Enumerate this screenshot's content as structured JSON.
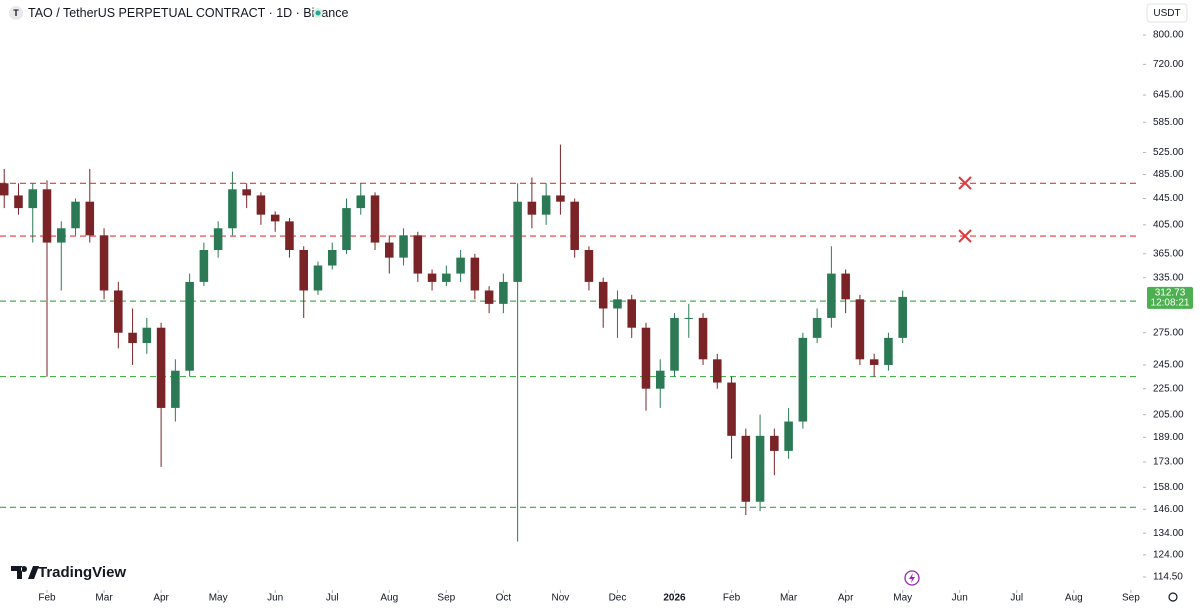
{
  "chart_data": {
    "type": "candlestick",
    "title": "TAO / TetherUS PERPETUAL CONTRACT · 1D · Binance",
    "symbol_icon": "T",
    "currency": "USDT",
    "brand": "TradingView",
    "countdown": "12:08:21",
    "log_scale": true,
    "grid": false,
    "up_color": "#2b7a55",
    "down_color": "#7a2428",
    "last_price_color": "#4caf50",
    "ylim": [
      109.3,
      907
    ],
    "yticks": [
      {
        "value": 800,
        "label": "800.00"
      },
      {
        "value": 720,
        "label": "720.00"
      },
      {
        "value": 645,
        "label": "645.00"
      },
      {
        "value": 585,
        "label": "585.00"
      },
      {
        "value": 525,
        "label": "525.00"
      },
      {
        "value": 485,
        "label": "485.00"
      },
      {
        "value": 445,
        "label": "445.00"
      },
      {
        "value": 405,
        "label": "405.00"
      },
      {
        "value": 365,
        "label": "365.00"
      },
      {
        "value": 335,
        "label": "335.00"
      },
      {
        "value": 275,
        "label": "275.00"
      },
      {
        "value": 245,
        "label": "245.00"
      },
      {
        "value": 225,
        "label": "225.00"
      },
      {
        "value": 205,
        "label": "205.00"
      },
      {
        "value": 189,
        "label": "189.00"
      },
      {
        "value": 173,
        "label": "173.00"
      },
      {
        "value": 158,
        "label": "158.00"
      },
      {
        "value": 146,
        "label": "146.00"
      },
      {
        "value": 134,
        "label": "134.00"
      },
      {
        "value": 124,
        "label": "124.00"
      },
      {
        "value": 114.5,
        "label": "114.50"
      }
    ],
    "xlim": [
      -0.824,
      19.16
    ],
    "xticks": [
      {
        "value": 0,
        "label": "Feb"
      },
      {
        "value": 1,
        "label": "Mar"
      },
      {
        "value": 2,
        "label": "Apr"
      },
      {
        "value": 3,
        "label": "May"
      },
      {
        "value": 4,
        "label": "Jun"
      },
      {
        "value": 5,
        "label": "Jul"
      },
      {
        "value": 6,
        "label": "Aug"
      },
      {
        "value": 7,
        "label": "Sep"
      },
      {
        "value": 8,
        "label": "Oct"
      },
      {
        "value": 9,
        "label": "Nov"
      },
      {
        "value": 10,
        "label": "Dec"
      },
      {
        "value": 11,
        "label": "2026"
      },
      {
        "value": 12,
        "label": "Feb"
      },
      {
        "value": 13,
        "label": "Mar"
      },
      {
        "value": 14,
        "label": "Apr"
      },
      {
        "value": 15,
        "label": "May"
      },
      {
        "value": 16,
        "label": "Jun"
      },
      {
        "value": 17,
        "label": "Jul"
      },
      {
        "value": 18,
        "label": "Aug"
      },
      {
        "value": 19,
        "label": "Sep"
      }
    ],
    "x": [
      -0.75,
      -0.5,
      -0.25,
      0,
      0.25,
      0.5,
      0.75,
      1,
      1.25,
      1.5,
      1.75,
      2,
      2.25,
      2.5,
      2.75,
      3,
      3.25,
      3.5,
      3.75,
      4,
      4.25,
      4.5,
      4.75,
      5,
      5.25,
      5.5,
      5.75,
      6,
      6.25,
      6.5,
      6.75,
      7,
      7.25,
      7.5,
      7.75,
      8,
      8.25,
      8.5,
      8.75,
      9,
      9.25,
      9.5,
      9.75,
      10,
      10.25,
      10.5,
      10.75,
      11,
      11.25,
      11.5,
      11.75,
      12,
      12.25,
      12.5,
      12.75,
      13,
      13.25,
      13.5,
      13.75,
      14,
      14.25,
      14.5,
      14.75,
      15
    ],
    "open": [
      470,
      450,
      430,
      460,
      380,
      400,
      440,
      390,
      320,
      275,
      265,
      280,
      210,
      240,
      330,
      370,
      400,
      460,
      450,
      420,
      410,
      370,
      320,
      350,
      370,
      430,
      450,
      380,
      360,
      390,
      340,
      330,
      340,
      360,
      320,
      305,
      330,
      440,
      420,
      450,
      440,
      370,
      330,
      300,
      310,
      280,
      225,
      240,
      290,
      290,
      250,
      230,
      190,
      150,
      190,
      180,
      200,
      270,
      290,
      340,
      310,
      250,
      245,
      270
    ],
    "high": [
      495,
      470,
      470,
      475,
      410,
      445,
      495,
      400,
      330,
      300,
      290,
      285,
      250,
      340,
      380,
      410,
      490,
      470,
      455,
      425,
      415,
      375,
      355,
      380,
      445,
      470,
      455,
      390,
      400,
      395,
      345,
      350,
      370,
      365,
      325,
      340,
      470,
      480,
      470,
      540,
      445,
      375,
      335,
      320,
      315,
      285,
      250,
      295,
      305,
      295,
      255,
      235,
      195,
      205,
      195,
      210,
      275,
      300,
      375,
      345,
      315,
      255,
      275,
      320
    ],
    "low": [
      430,
      420,
      380,
      235,
      320,
      390,
      380,
      310,
      260,
      245,
      255,
      170,
      200,
      235,
      325,
      360,
      390,
      430,
      405,
      395,
      360,
      290,
      315,
      345,
      365,
      420,
      370,
      340,
      350,
      330,
      320,
      325,
      330,
      310,
      295,
      295,
      130,
      400,
      405,
      420,
      360,
      320,
      280,
      270,
      270,
      208,
      210,
      235,
      270,
      245,
      225,
      175,
      143,
      145,
      165,
      175,
      195,
      265,
      280,
      295,
      245,
      235,
      240,
      265
    ],
    "close": [
      450,
      430,
      460,
      380,
      400,
      440,
      390,
      320,
      275,
      265,
      280,
      210,
      240,
      330,
      370,
      400,
      460,
      450,
      420,
      410,
      370,
      320,
      350,
      370,
      430,
      450,
      380,
      360,
      390,
      340,
      330,
      340,
      360,
      320,
      305,
      330,
      440,
      420,
      450,
      440,
      370,
      330,
      300,
      310,
      280,
      225,
      240,
      290,
      290,
      250,
      230,
      190,
      150,
      190,
      180,
      200,
      270,
      290,
      340,
      310,
      250,
      245,
      270,
      312.73
    ],
    "levels": [
      {
        "value": 470,
        "color": "#e0393e"
      },
      {
        "value": 389,
        "color": "#e0393e"
      },
      {
        "value": 308,
        "color": "#4caf50"
      },
      {
        "value": 235,
        "color": "#4caf50"
      },
      {
        "value": 147,
        "color": "#4caf50"
      }
    ]
  }
}
